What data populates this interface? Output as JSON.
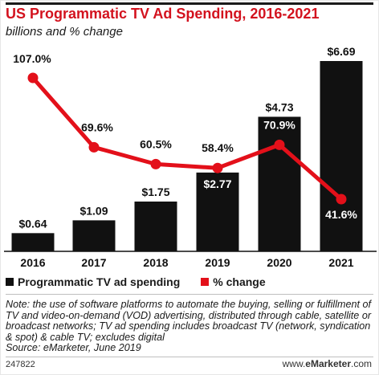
{
  "colors": {
    "title": "#d3121e",
    "bars": "#111111",
    "line": "#e3101a"
  },
  "chart_data": {
    "type": "bar",
    "title": "US Programmatic TV Ad Spending, 2016-2021",
    "subtitle": "billions and % change",
    "categories": [
      "2016",
      "2017",
      "2018",
      "2019",
      "2020",
      "2021"
    ],
    "series": [
      {
        "name": "Programmatic TV ad spending",
        "type": "bar",
        "values": [
          0.64,
          1.09,
          1.75,
          2.77,
          4.73,
          6.69
        ],
        "labels": [
          "$0.64",
          "$1.09",
          "$1.75",
          "$2.77",
          "$4.73",
          "$6.69"
        ],
        "color": "#111111"
      },
      {
        "name": "% change",
        "type": "line",
        "values": [
          107.0,
          69.6,
          60.5,
          58.4,
          70.9,
          41.6
        ],
        "labels": [
          "107.0%",
          "69.6%",
          "60.5%",
          "58.4%",
          "70.9%",
          "41.6%"
        ],
        "color": "#e3101a"
      }
    ],
    "legend": "bottom-left",
    "grid": false
  },
  "note": "Note: the use of software platforms to automate the buying, selling or fulfillment of TV and video-on-demand (VOD) advertising, distributed through cable, satellite or broadcast networks; TV ad spending includes broadcast TV (network, syndication & spot) & cable TV; excludes digital\nSource: eMarketer, June 2019",
  "footer": {
    "id": "247822",
    "brand_prefix": "www.",
    "brand_name": "eMarketer",
    "brand_suffix": ".com"
  }
}
